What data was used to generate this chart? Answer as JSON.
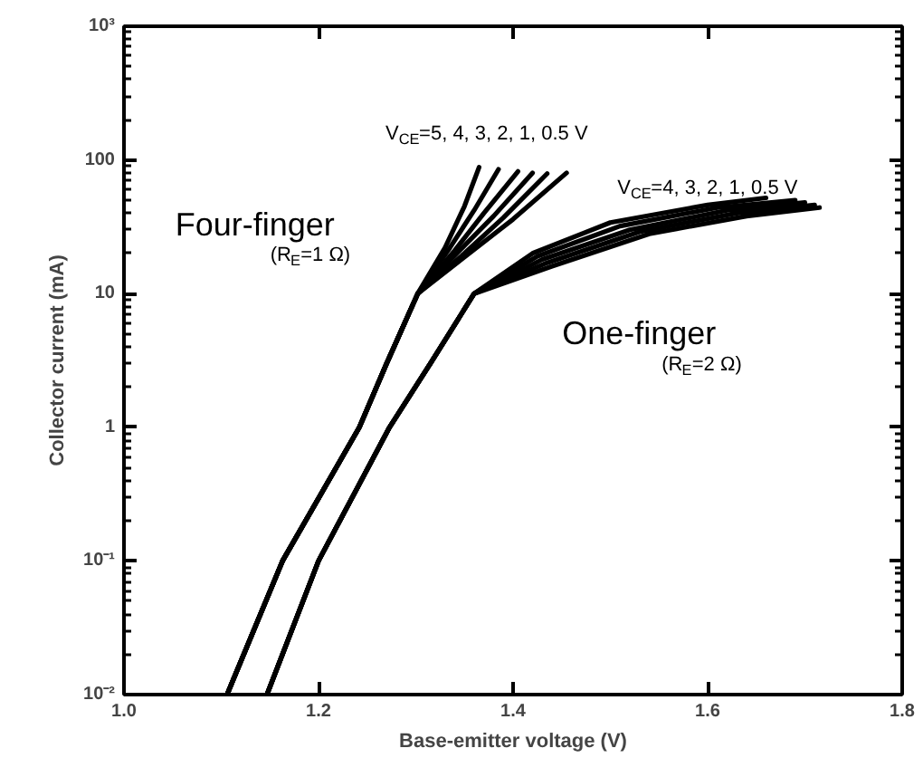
{
  "chart_data": {
    "type": "line",
    "xlabel": "Base-emitter voltage (V)",
    "ylabel": "Collector current (mA)",
    "log": "y",
    "grid": false,
    "marker": "none",
    "line_style": "solid",
    "xlim": [
      1.0,
      1.8
    ],
    "xticks": [
      {
        "value": 1.0,
        "label": "1.0"
      },
      1.2,
      1.4,
      1.6,
      1.8
    ],
    "ylim": [
      0.01,
      1000
    ],
    "yticks": [
      {
        "value": 0.01,
        "label": "10⁻²"
      },
      {
        "value": 0.1,
        "label": "10⁻¹"
      },
      1,
      10,
      100,
      {
        "value": 1000,
        "label": "10³"
      }
    ],
    "series": [
      {
        "color": "#000000",
        "x": [
          1.106,
          1.163,
          1.242,
          1.27,
          1.302,
          1.33,
          1.35,
          1.365
        ],
        "values": [
          0.01,
          0.1,
          1,
          3,
          10,
          22,
          45,
          88
        ]
      },
      {
        "color": "#000000",
        "x": [
          1.106,
          1.163,
          1.242,
          1.27,
          1.302,
          1.335,
          1.36,
          1.385
        ],
        "values": [
          0.01,
          0.1,
          1,
          3,
          10,
          22,
          42,
          85
        ]
      },
      {
        "color": "#000000",
        "x": [
          1.106,
          1.163,
          1.242,
          1.27,
          1.302,
          1.34,
          1.37,
          1.405
        ],
        "values": [
          0.01,
          0.1,
          1,
          3,
          10,
          21,
          40,
          82
        ]
      },
      {
        "color": "#000000",
        "x": [
          1.106,
          1.163,
          1.242,
          1.27,
          1.302,
          1.345,
          1.38,
          1.42
        ],
        "values": [
          0.01,
          0.1,
          1,
          3,
          10,
          21,
          38,
          80
        ]
      },
      {
        "color": "#000000",
        "x": [
          1.106,
          1.163,
          1.242,
          1.27,
          1.302,
          1.35,
          1.39,
          1.435
        ],
        "values": [
          0.01,
          0.1,
          1,
          3,
          10,
          20,
          37,
          79
        ]
      },
      {
        "color": "#000000",
        "x": [
          1.106,
          1.163,
          1.242,
          1.27,
          1.302,
          1.355,
          1.4,
          1.455
        ],
        "values": [
          0.01,
          0.1,
          1,
          3,
          10,
          20,
          36,
          80
        ]
      },
      {
        "color": "#000000",
        "x": [
          1.147,
          1.2,
          1.273,
          1.315,
          1.36,
          1.42,
          1.5,
          1.6,
          1.66
        ],
        "values": [
          0.01,
          0.1,
          1,
          3,
          10,
          20,
          34,
          46,
          52
        ]
      },
      {
        "color": "#000000",
        "x": [
          1.147,
          1.2,
          1.273,
          1.315,
          1.36,
          1.425,
          1.51,
          1.61,
          1.69
        ],
        "values": [
          0.01,
          0.1,
          1,
          3,
          10,
          19,
          32,
          44,
          50
        ]
      },
      {
        "color": "#000000",
        "x": [
          1.147,
          1.2,
          1.273,
          1.315,
          1.36,
          1.43,
          1.52,
          1.62,
          1.7
        ],
        "values": [
          0.01,
          0.1,
          1,
          3,
          10,
          18,
          30,
          42,
          48
        ]
      },
      {
        "color": "#000000",
        "x": [
          1.147,
          1.2,
          1.273,
          1.315,
          1.36,
          1.435,
          1.53,
          1.63,
          1.71
        ],
        "values": [
          0.01,
          0.1,
          1,
          3,
          10,
          17,
          29,
          40,
          46
        ]
      },
      {
        "color": "#000000",
        "x": [
          1.147,
          1.2,
          1.273,
          1.315,
          1.36,
          1.44,
          1.54,
          1.64,
          1.715
        ],
        "values": [
          0.01,
          0.1,
          1,
          3,
          10,
          16,
          28,
          38,
          44
        ]
      }
    ],
    "annotations": [
      "V$_{CE}$=5, 4, 3, 2, 1, 0.5 V",
      "Four-finger",
      "(R$_{E}$=1 Ω)",
      "V$_{CE}$=4, 3, 2, 1, 0.5 V",
      "One-finger",
      "(R$_{E}$=2 Ω)"
    ]
  }
}
